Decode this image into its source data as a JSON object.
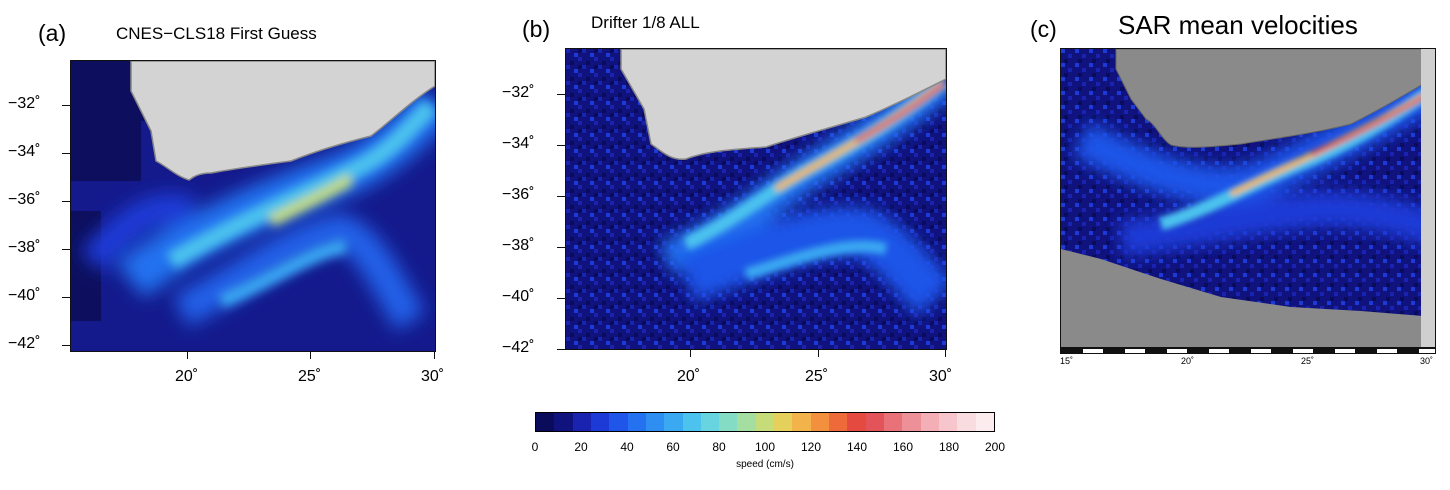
{
  "panels": [
    {
      "tag": "(a)",
      "title": "CNES−CLS18 First Guess",
      "ytick_labels": [
        "−32˚",
        "−34˚",
        "−36˚",
        "−38˚",
        "−40˚",
        "−42˚"
      ],
      "xtick_labels": [
        "20˚",
        "25˚",
        "30˚"
      ]
    },
    {
      "tag": "(b)",
      "title": "Drifter 1/8 ALL",
      "ytick_labels": [
        "−32˚",
        "−34˚",
        "−36˚",
        "−38˚",
        "−40˚",
        "−42˚"
      ],
      "xtick_labels": [
        "20˚",
        "25˚",
        "30˚"
      ]
    },
    {
      "tag": "(c)",
      "title": "SAR mean velocities",
      "xtick_labels": [
        "15˚",
        "20˚",
        "25˚",
        "30˚"
      ]
    }
  ],
  "colorbar": {
    "title": "speed (cm/s)",
    "tick_labels": [
      "0",
      "20",
      "40",
      "60",
      "80",
      "100",
      "120",
      "140",
      "160",
      "180",
      "200"
    ],
    "colors": [
      "#0b0b5c",
      "#10127e",
      "#1a22b0",
      "#1d3ad6",
      "#1f55e8",
      "#2472f0",
      "#2f8ef2",
      "#3aa9f2",
      "#4cc2ee",
      "#67d4e0",
      "#84dcc4",
      "#a4dea0",
      "#c6dc78",
      "#e4d05a",
      "#f2b44a",
      "#f3903e",
      "#ee6a3a",
      "#e54a40",
      "#e3545a",
      "#e97278",
      "#ee9098",
      "#f3aeb6",
      "#f6c6cc",
      "#f9dce0",
      "#fcecee"
    ]
  },
  "chart_data": [
    {
      "type": "heatmap",
      "title": "CNES−CLS18 First Guess",
      "x_ticks": [
        20,
        25,
        30
      ],
      "y_ticks": [
        -32,
        -34,
        -36,
        -38,
        -40,
        -42
      ],
      "xlim": [
        15,
        30
      ],
      "ylim": [
        -42.2,
        -30
      ],
      "colorbar_range": [
        0,
        200
      ],
      "units": "cm/s",
      "fields": {
        "agulhas_current_max_speed": 110,
        "retroflection_max_speed": 70
      }
    },
    {
      "type": "heatmap",
      "title": "Drifter 1/8 ALL",
      "x_ticks": [
        20,
        25,
        30
      ],
      "y_ticks": [
        -32,
        -34,
        -36,
        -38,
        -40,
        -42
      ],
      "xlim": [
        15,
        30
      ],
      "ylim": [
        -42.2,
        -30
      ],
      "colorbar_range": [
        0,
        200
      ],
      "units": "cm/s",
      "fields": {
        "agulhas_current_max_speed": 160,
        "retroflection_max_speed": 60
      }
    },
    {
      "type": "heatmap",
      "title": "SAR mean velocities",
      "x_ticks": [
        15,
        20,
        25,
        30
      ],
      "xlim": [
        15,
        30
      ],
      "colorbar_range": [
        0,
        200
      ],
      "units": "cm/s",
      "fields": {
        "agulhas_current_max_speed": 160,
        "retroflection_max_speed": 60
      }
    },
    {
      "type": "colorbar",
      "label": "speed (cm/s)",
      "range": [
        0,
        200
      ],
      "ticks": [
        0,
        20,
        40,
        60,
        80,
        100,
        120,
        140,
        160,
        180,
        200
      ]
    }
  ]
}
